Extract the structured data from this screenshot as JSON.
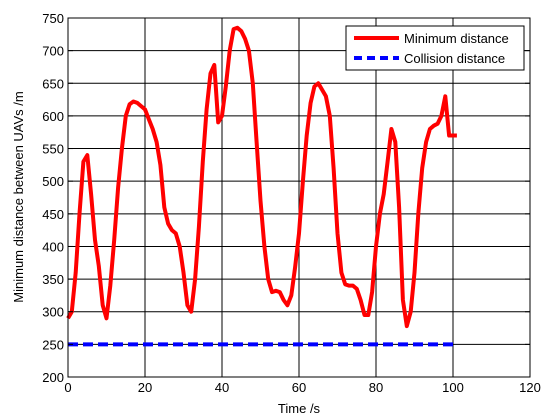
{
  "chart_data": {
    "type": "line",
    "xlabel": "Time /s",
    "ylabel": "Minimum distance between UAVs /m",
    "xlim": [
      0,
      120
    ],
    "ylim": [
      200,
      750
    ],
    "xticks": [
      "0",
      "20",
      "40",
      "60",
      "80",
      "100",
      "120"
    ],
    "yticks": [
      "200",
      "250",
      "300",
      "350",
      "400",
      "450",
      "500",
      "550",
      "600",
      "650",
      "700",
      "750"
    ],
    "grid": true,
    "legend_position": "top-right",
    "series": [
      {
        "name": "Minimum distance",
        "color": "#ff0000",
        "style": "solid",
        "x": [
          0,
          1,
          2,
          3,
          4,
          5,
          6,
          7,
          8,
          9,
          10,
          11,
          12,
          13,
          14,
          15,
          16,
          17,
          18,
          19,
          20,
          21,
          22,
          23,
          24,
          25,
          26,
          27,
          28,
          29,
          30,
          31,
          32,
          33,
          34,
          35,
          36,
          37,
          38,
          39,
          40,
          41,
          42,
          43,
          44,
          45,
          46,
          47,
          48,
          49,
          50,
          51,
          52,
          53,
          54,
          55,
          56,
          57,
          58,
          59,
          60,
          61,
          62,
          63,
          64,
          65,
          66,
          67,
          68,
          69,
          70,
          71,
          72,
          73,
          74,
          75,
          76,
          77,
          78,
          79,
          80,
          81,
          82,
          83,
          84,
          85,
          86,
          87,
          88,
          89,
          90,
          91,
          92,
          93,
          94,
          95,
          96,
          97,
          98,
          99,
          100,
          101
        ],
        "values": [
          290,
          300,
          360,
          450,
          530,
          540,
          480,
          410,
          370,
          310,
          290,
          340,
          410,
          490,
          550,
          600,
          618,
          622,
          620,
          615,
          610,
          595,
          580,
          560,
          525,
          460,
          435,
          425,
          420,
          400,
          360,
          310,
          300,
          350,
          430,
          530,
          610,
          665,
          678,
          590,
          600,
          645,
          700,
          733,
          735,
          730,
          718,
          700,
          650,
          560,
          470,
          400,
          350,
          330,
          332,
          330,
          318,
          310,
          325,
          368,
          420,
          500,
          570,
          620,
          645,
          650,
          640,
          630,
          600,
          520,
          420,
          360,
          342,
          340,
          340,
          335,
          318,
          295,
          295,
          330,
          400,
          450,
          480,
          530,
          580,
          560,
          460,
          318,
          278,
          300,
          360,
          450,
          520,
          560,
          580,
          585,
          588,
          600,
          630,
          570,
          570,
          570
        ]
      },
      {
        "name": "Collision distance",
        "color": "#0000ff",
        "style": "dashed",
        "x": [
          0,
          101
        ],
        "values": [
          250,
          250
        ]
      }
    ]
  }
}
